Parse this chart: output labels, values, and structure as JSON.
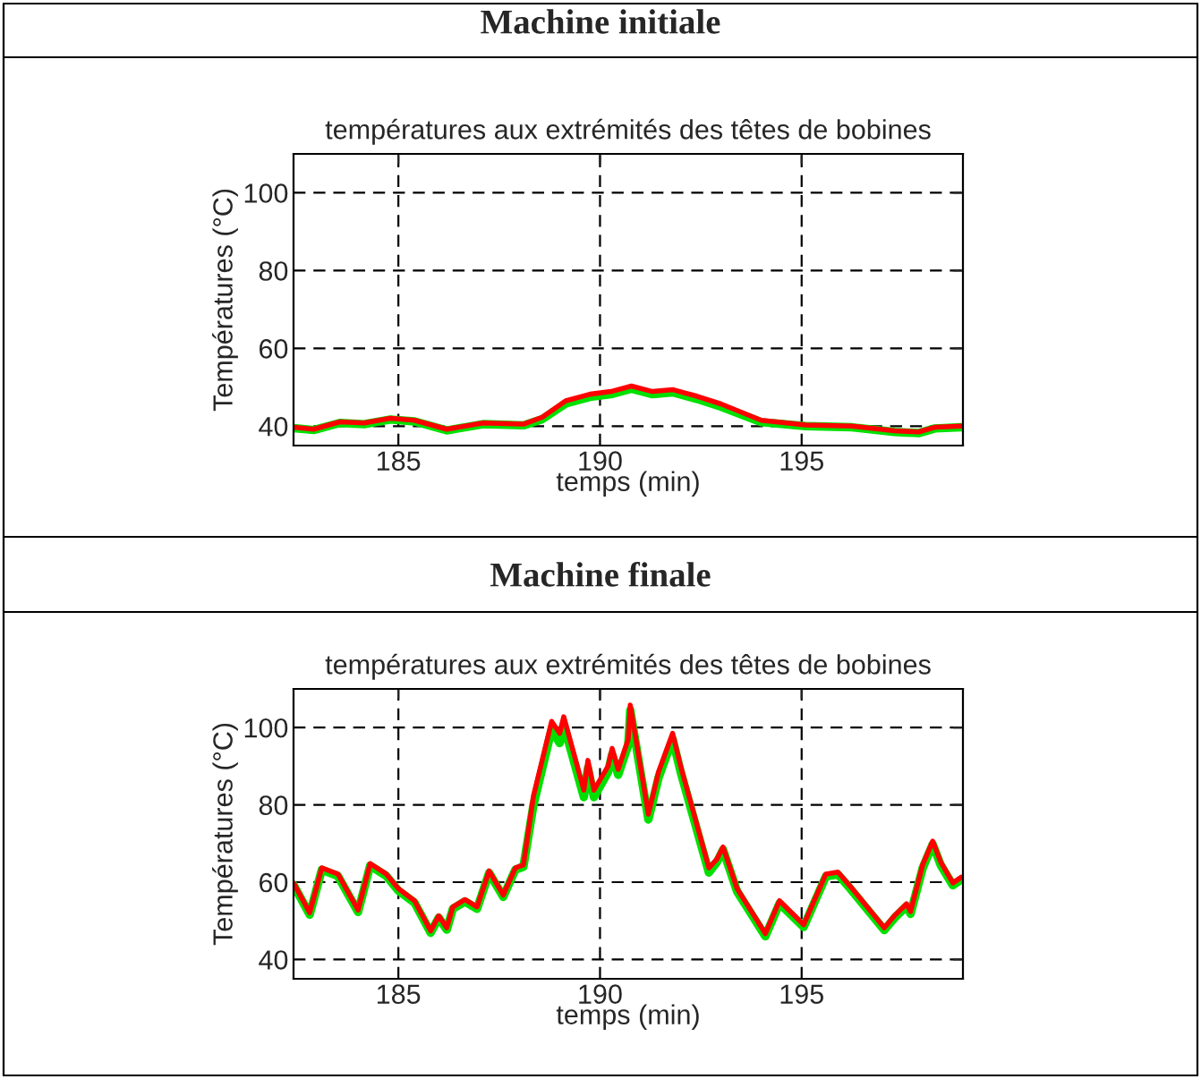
{
  "chart_data": [
    {
      "type": "line",
      "title": "Machine initiale",
      "subtitle": "températures aux extrémités des têtes de bobines",
      "xlabel": "temps (min)",
      "ylabel": "Températures (°C)",
      "xlim": [
        182.4,
        199
      ],
      "ylim": [
        35,
        110
      ],
      "xticks": [
        185,
        190,
        195
      ],
      "yticks": [
        40,
        60,
        80,
        100
      ],
      "grid": true,
      "line_style": "solid",
      "x": [
        182.4,
        182.9,
        183.55,
        184.15,
        184.8,
        185.4,
        186.2,
        187.1,
        188.1,
        188.57,
        189.15,
        189.75,
        190.27,
        190.78,
        191.3,
        191.8,
        192.4,
        193.0,
        194.0,
        195.1,
        196.25,
        197.3,
        197.9,
        198.3,
        198.96
      ],
      "series": [
        {
          "color": "#00e000",
          "values": [
            39.5,
            39.0,
            40.8,
            40.5,
            41.7,
            41.2,
            38.9,
            40.5,
            40.2,
            41.8,
            45.8,
            47.5,
            48.2,
            49.6,
            48.2,
            48.7,
            47.0,
            45.0,
            41.0,
            40.0,
            39.7,
            38.5,
            38.2,
            39.4,
            39.7
          ]
        },
        {
          "color": "#ff0000",
          "values": [
            39.7,
            39.2,
            41.1,
            40.8,
            42.0,
            41.5,
            39.2,
            40.8,
            40.5,
            42.3,
            46.5,
            48.2,
            48.9,
            50.3,
            48.9,
            49.4,
            47.7,
            45.7,
            41.5,
            40.3,
            40.0,
            38.8,
            38.5,
            39.7,
            40.0
          ]
        }
      ]
    },
    {
      "type": "line",
      "title": "Machine finale",
      "subtitle": "températures aux extrémités des têtes de bobines",
      "xlabel": "temps (min)",
      "ylabel": "Températures (°C)",
      "xlim": [
        182.4,
        199
      ],
      "ylim": [
        35,
        110
      ],
      "xticks": [
        185,
        190,
        195
      ],
      "yticks": [
        40,
        60,
        80,
        100
      ],
      "grid": true,
      "line_style": "solid",
      "x": [
        182.4,
        182.8,
        183.1,
        183.5,
        184.0,
        184.3,
        184.7,
        185.0,
        185.4,
        185.8,
        186.0,
        186.2,
        186.35,
        186.65,
        186.95,
        187.25,
        187.6,
        187.9,
        188.1,
        188.35,
        188.8,
        189.0,
        189.1,
        189.6,
        189.7,
        189.85,
        190.2,
        190.3,
        190.45,
        190.7,
        190.75,
        191.2,
        191.45,
        191.8,
        192.0,
        192.7,
        192.9,
        193.05,
        193.4,
        194.1,
        194.45,
        195.05,
        195.6,
        195.9,
        196.2,
        197.05,
        197.3,
        197.6,
        197.7,
        198.0,
        198.25,
        198.45,
        198.75,
        198.96
      ],
      "series": [
        {
          "color": "#00e000",
          "values": [
            59.3,
            51.6,
            63.2,
            61.6,
            52.3,
            64.3,
            61.6,
            57.8,
            54.7,
            46.9,
            50.8,
            47.7,
            53.1,
            55.0,
            53.1,
            62.4,
            56.2,
            63.2,
            64.0,
            80.0,
            99.5,
            96.0,
            100.8,
            82.0,
            89.5,
            82.0,
            88.5,
            93.0,
            87.8,
            95.5,
            104.5,
            76.2,
            87.0,
            97.0,
            88.5,
            62.5,
            65.2,
            68.4,
            57.6,
            46.0,
            54.5,
            48.4,
            61.5,
            62.0,
            58.4,
            47.6,
            50.7,
            53.8,
            51.8,
            63.6,
            69.8,
            64.4,
            59.2,
            60.7
          ]
        },
        {
          "color": "#ff0000",
          "values": [
            59.8,
            52.1,
            63.7,
            62.1,
            52.8,
            64.8,
            62.1,
            58.3,
            55.2,
            47.4,
            51.3,
            48.2,
            53.6,
            55.5,
            53.6,
            62.9,
            56.7,
            63.7,
            64.5,
            82.3,
            101.6,
            98.5,
            102.8,
            83.8,
            91.5,
            83.8,
            90.0,
            94.6,
            89.2,
            97.0,
            105.8,
            77.6,
            88.5,
            98.5,
            90.0,
            63.7,
            66.0,
            69.1,
            58.3,
            46.7,
            55.2,
            49.0,
            62.1,
            62.6,
            59.0,
            48.2,
            51.3,
            54.4,
            52.4,
            64.5,
            70.6,
            65.2,
            59.8,
            61.3
          ]
        }
      ]
    }
  ]
}
